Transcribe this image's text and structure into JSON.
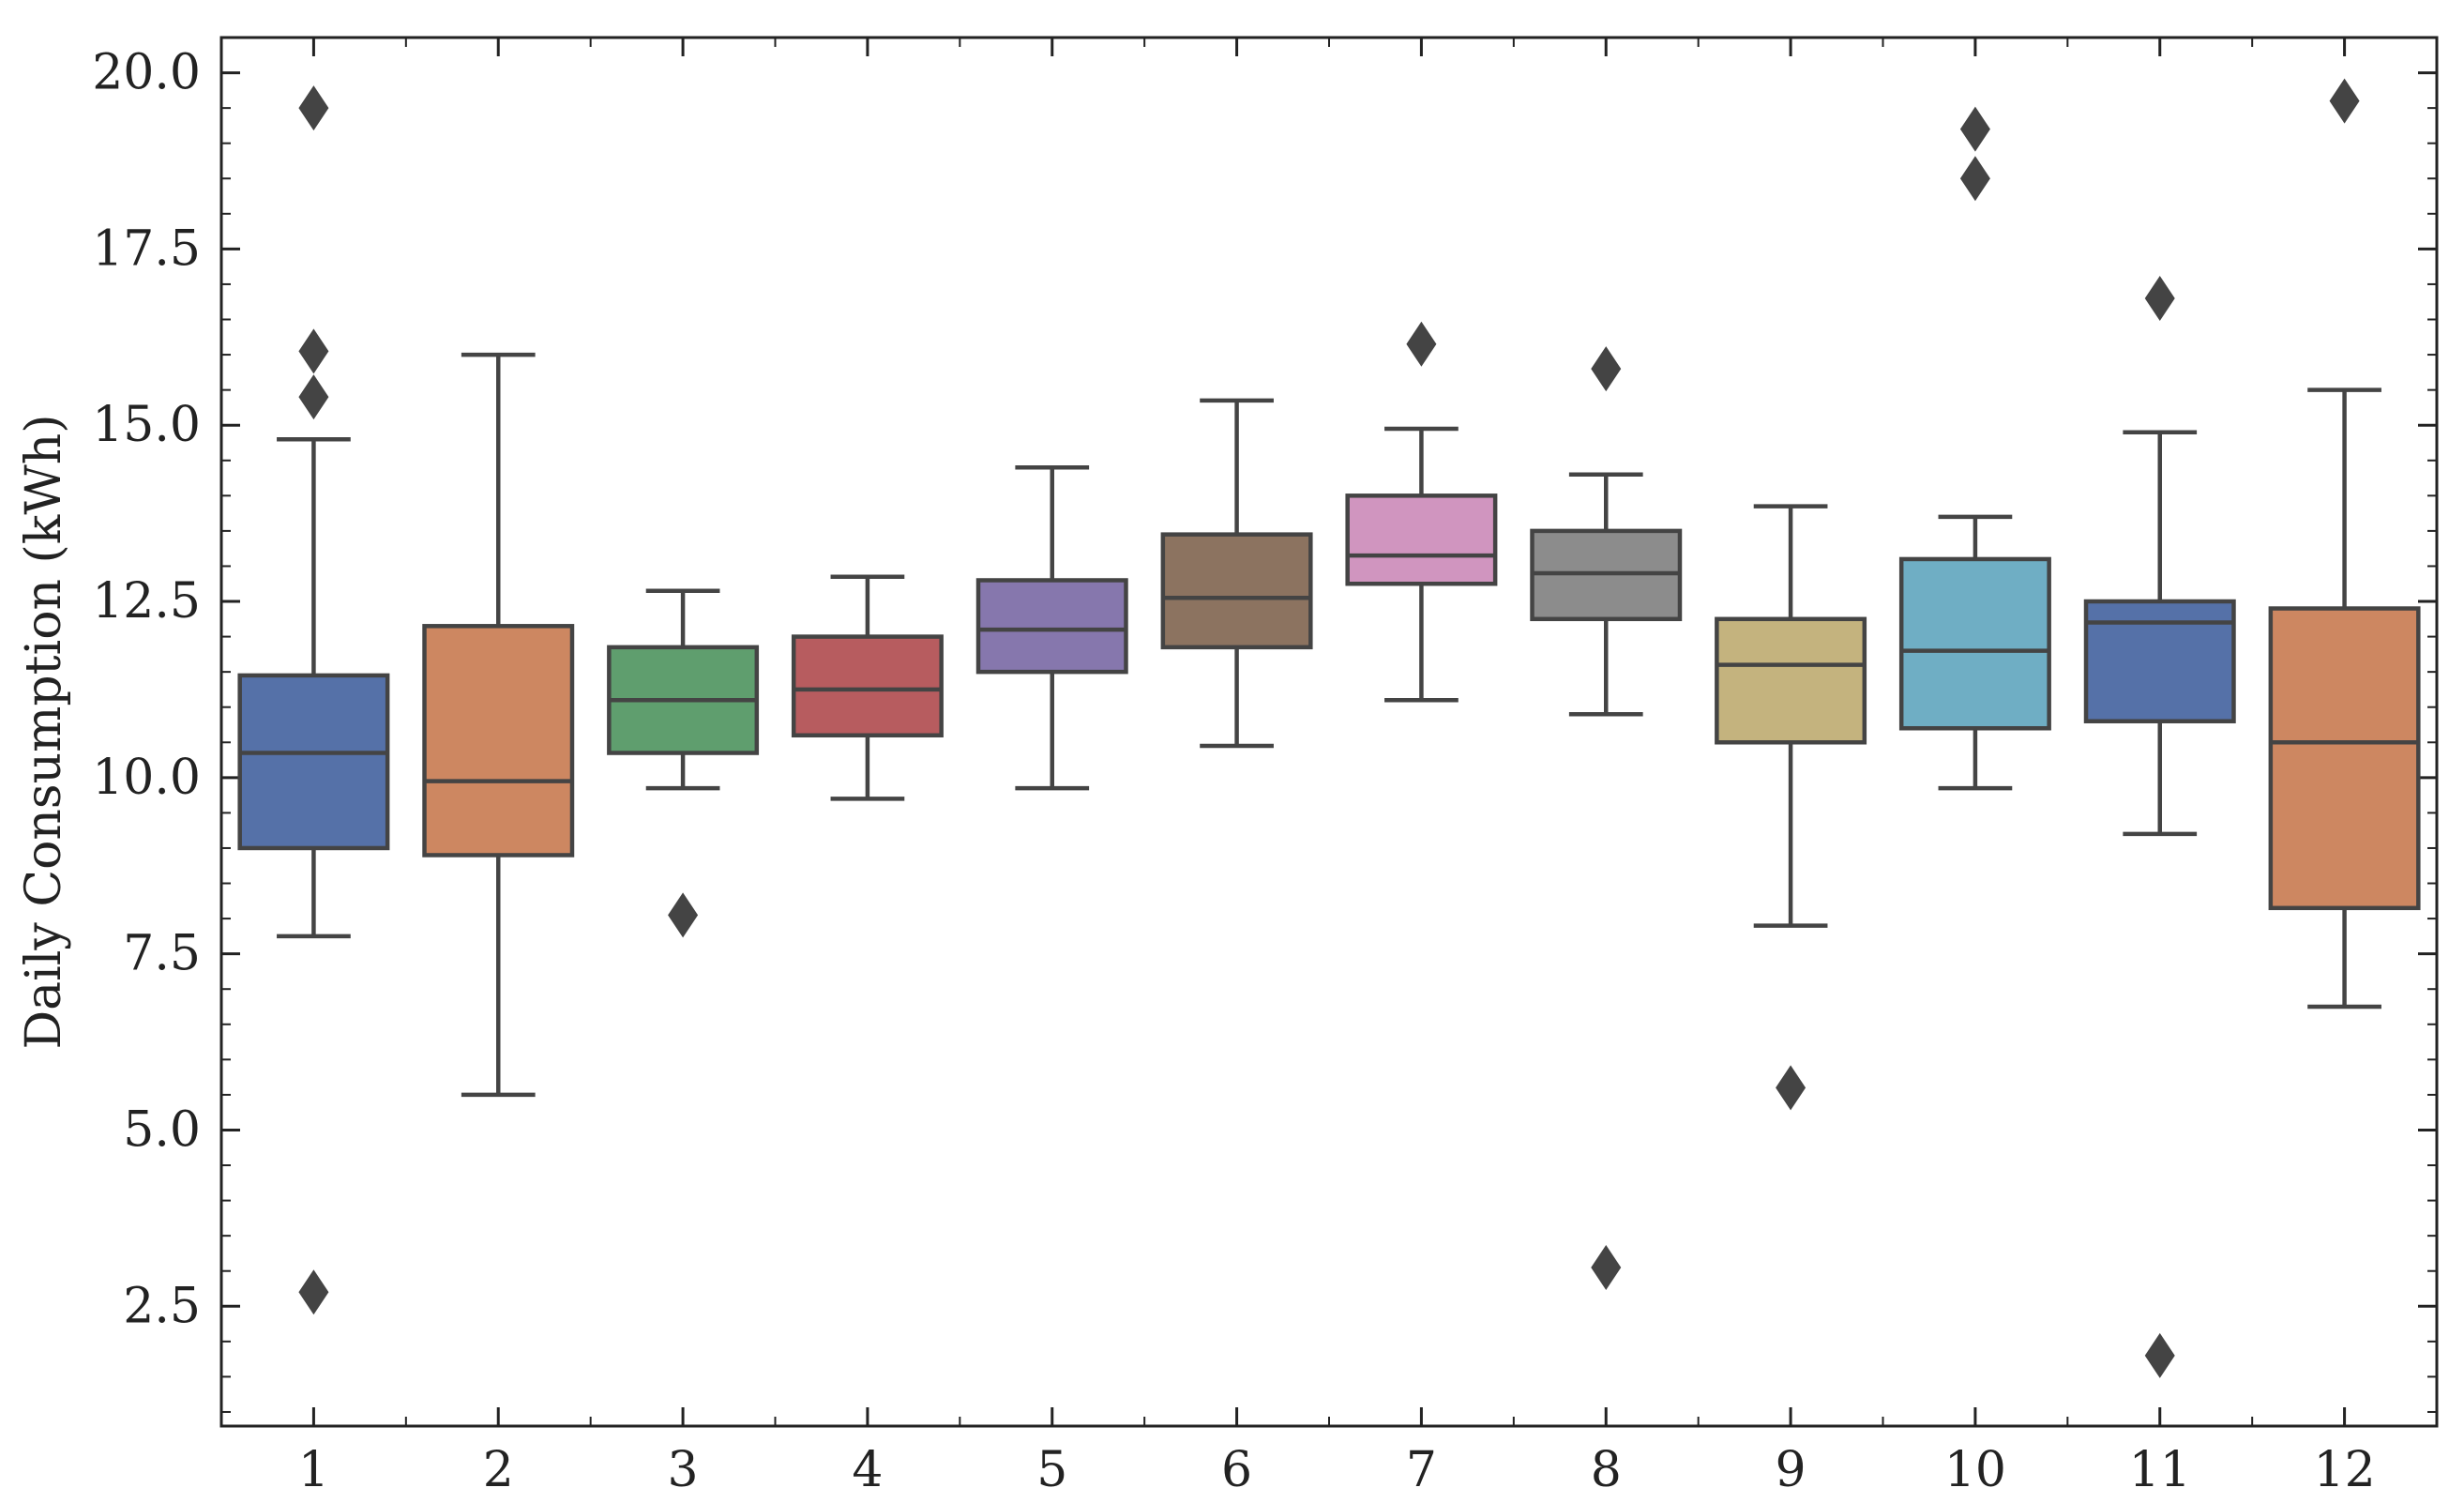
{
  "chart_data": {
    "type": "box",
    "title": "",
    "xlabel": "",
    "ylabel": "Daily Consumption (kWh)",
    "ylim": [
      0.8,
      20.5
    ],
    "yticks": [
      2.5,
      5.0,
      7.5,
      10.0,
      12.5,
      15.0,
      17.5,
      20.0
    ],
    "ytick_labels": [
      "2.5",
      "5.0",
      "7.5",
      "10.0",
      "12.5",
      "15.0",
      "17.5",
      "20.0"
    ],
    "categories": [
      "1",
      "2",
      "3",
      "4",
      "5",
      "6",
      "7",
      "8",
      "9",
      "10",
      "11",
      "12"
    ],
    "colors": [
      "#5571a8",
      "#cd8761",
      "#5f9e6e",
      "#b75c5f",
      "#8677ad",
      "#8c7360",
      "#d095bf",
      "#8c8c8c",
      "#c4b37e",
      "#6faec4",
      "#5571a8",
      "#cd8761"
    ],
    "edge_color": "#444444",
    "boxes": [
      {
        "label": "1",
        "whislo": 7.75,
        "q1": 9.0,
        "med": 10.35,
        "q3": 11.45,
        "whishi": 14.8,
        "fliers": [
          19.5,
          16.05,
          15.4,
          2.7
        ]
      },
      {
        "label": "2",
        "whislo": 5.5,
        "q1": 8.9,
        "med": 9.95,
        "q3": 12.15,
        "whishi": 16.0,
        "fliers": []
      },
      {
        "label": "3",
        "whislo": 9.85,
        "q1": 10.35,
        "med": 11.1,
        "q3": 11.85,
        "whishi": 12.65,
        "fliers": [
          8.05
        ]
      },
      {
        "label": "4",
        "whislo": 9.7,
        "q1": 10.6,
        "med": 11.25,
        "q3": 12.0,
        "whishi": 12.85,
        "fliers": []
      },
      {
        "label": "5",
        "whislo": 9.85,
        "q1": 11.5,
        "med": 12.1,
        "q3": 12.8,
        "whishi": 14.4,
        "fliers": []
      },
      {
        "label": "6",
        "whislo": 10.45,
        "q1": 11.85,
        "med": 12.55,
        "q3": 13.45,
        "whishi": 15.35,
        "fliers": []
      },
      {
        "label": "7",
        "whislo": 11.1,
        "q1": 12.75,
        "med": 13.15,
        "q3": 14.0,
        "whishi": 14.95,
        "fliers": [
          16.15
        ]
      },
      {
        "label": "8",
        "whislo": 10.9,
        "q1": 12.25,
        "med": 12.9,
        "q3": 13.5,
        "whishi": 14.3,
        "fliers": [
          15.8,
          3.05
        ]
      },
      {
        "label": "9",
        "whislo": 7.9,
        "q1": 10.5,
        "med": 11.6,
        "q3": 12.25,
        "whishi": 13.85,
        "fliers": [
          5.6
        ]
      },
      {
        "label": "10",
        "whislo": 9.85,
        "q1": 10.7,
        "med": 11.8,
        "q3": 13.1,
        "whishi": 13.7,
        "fliers": [
          19.2,
          18.5
        ]
      },
      {
        "label": "11",
        "whislo": 9.2,
        "q1": 10.8,
        "med": 12.2,
        "q3": 12.5,
        "whishi": 14.9,
        "fliers": [
          16.8,
          1.8
        ]
      },
      {
        "label": "12",
        "whislo": 6.75,
        "q1": 8.15,
        "med": 10.5,
        "q3": 12.4,
        "whishi": 15.5,
        "fliers": [
          19.6
        ]
      }
    ]
  }
}
